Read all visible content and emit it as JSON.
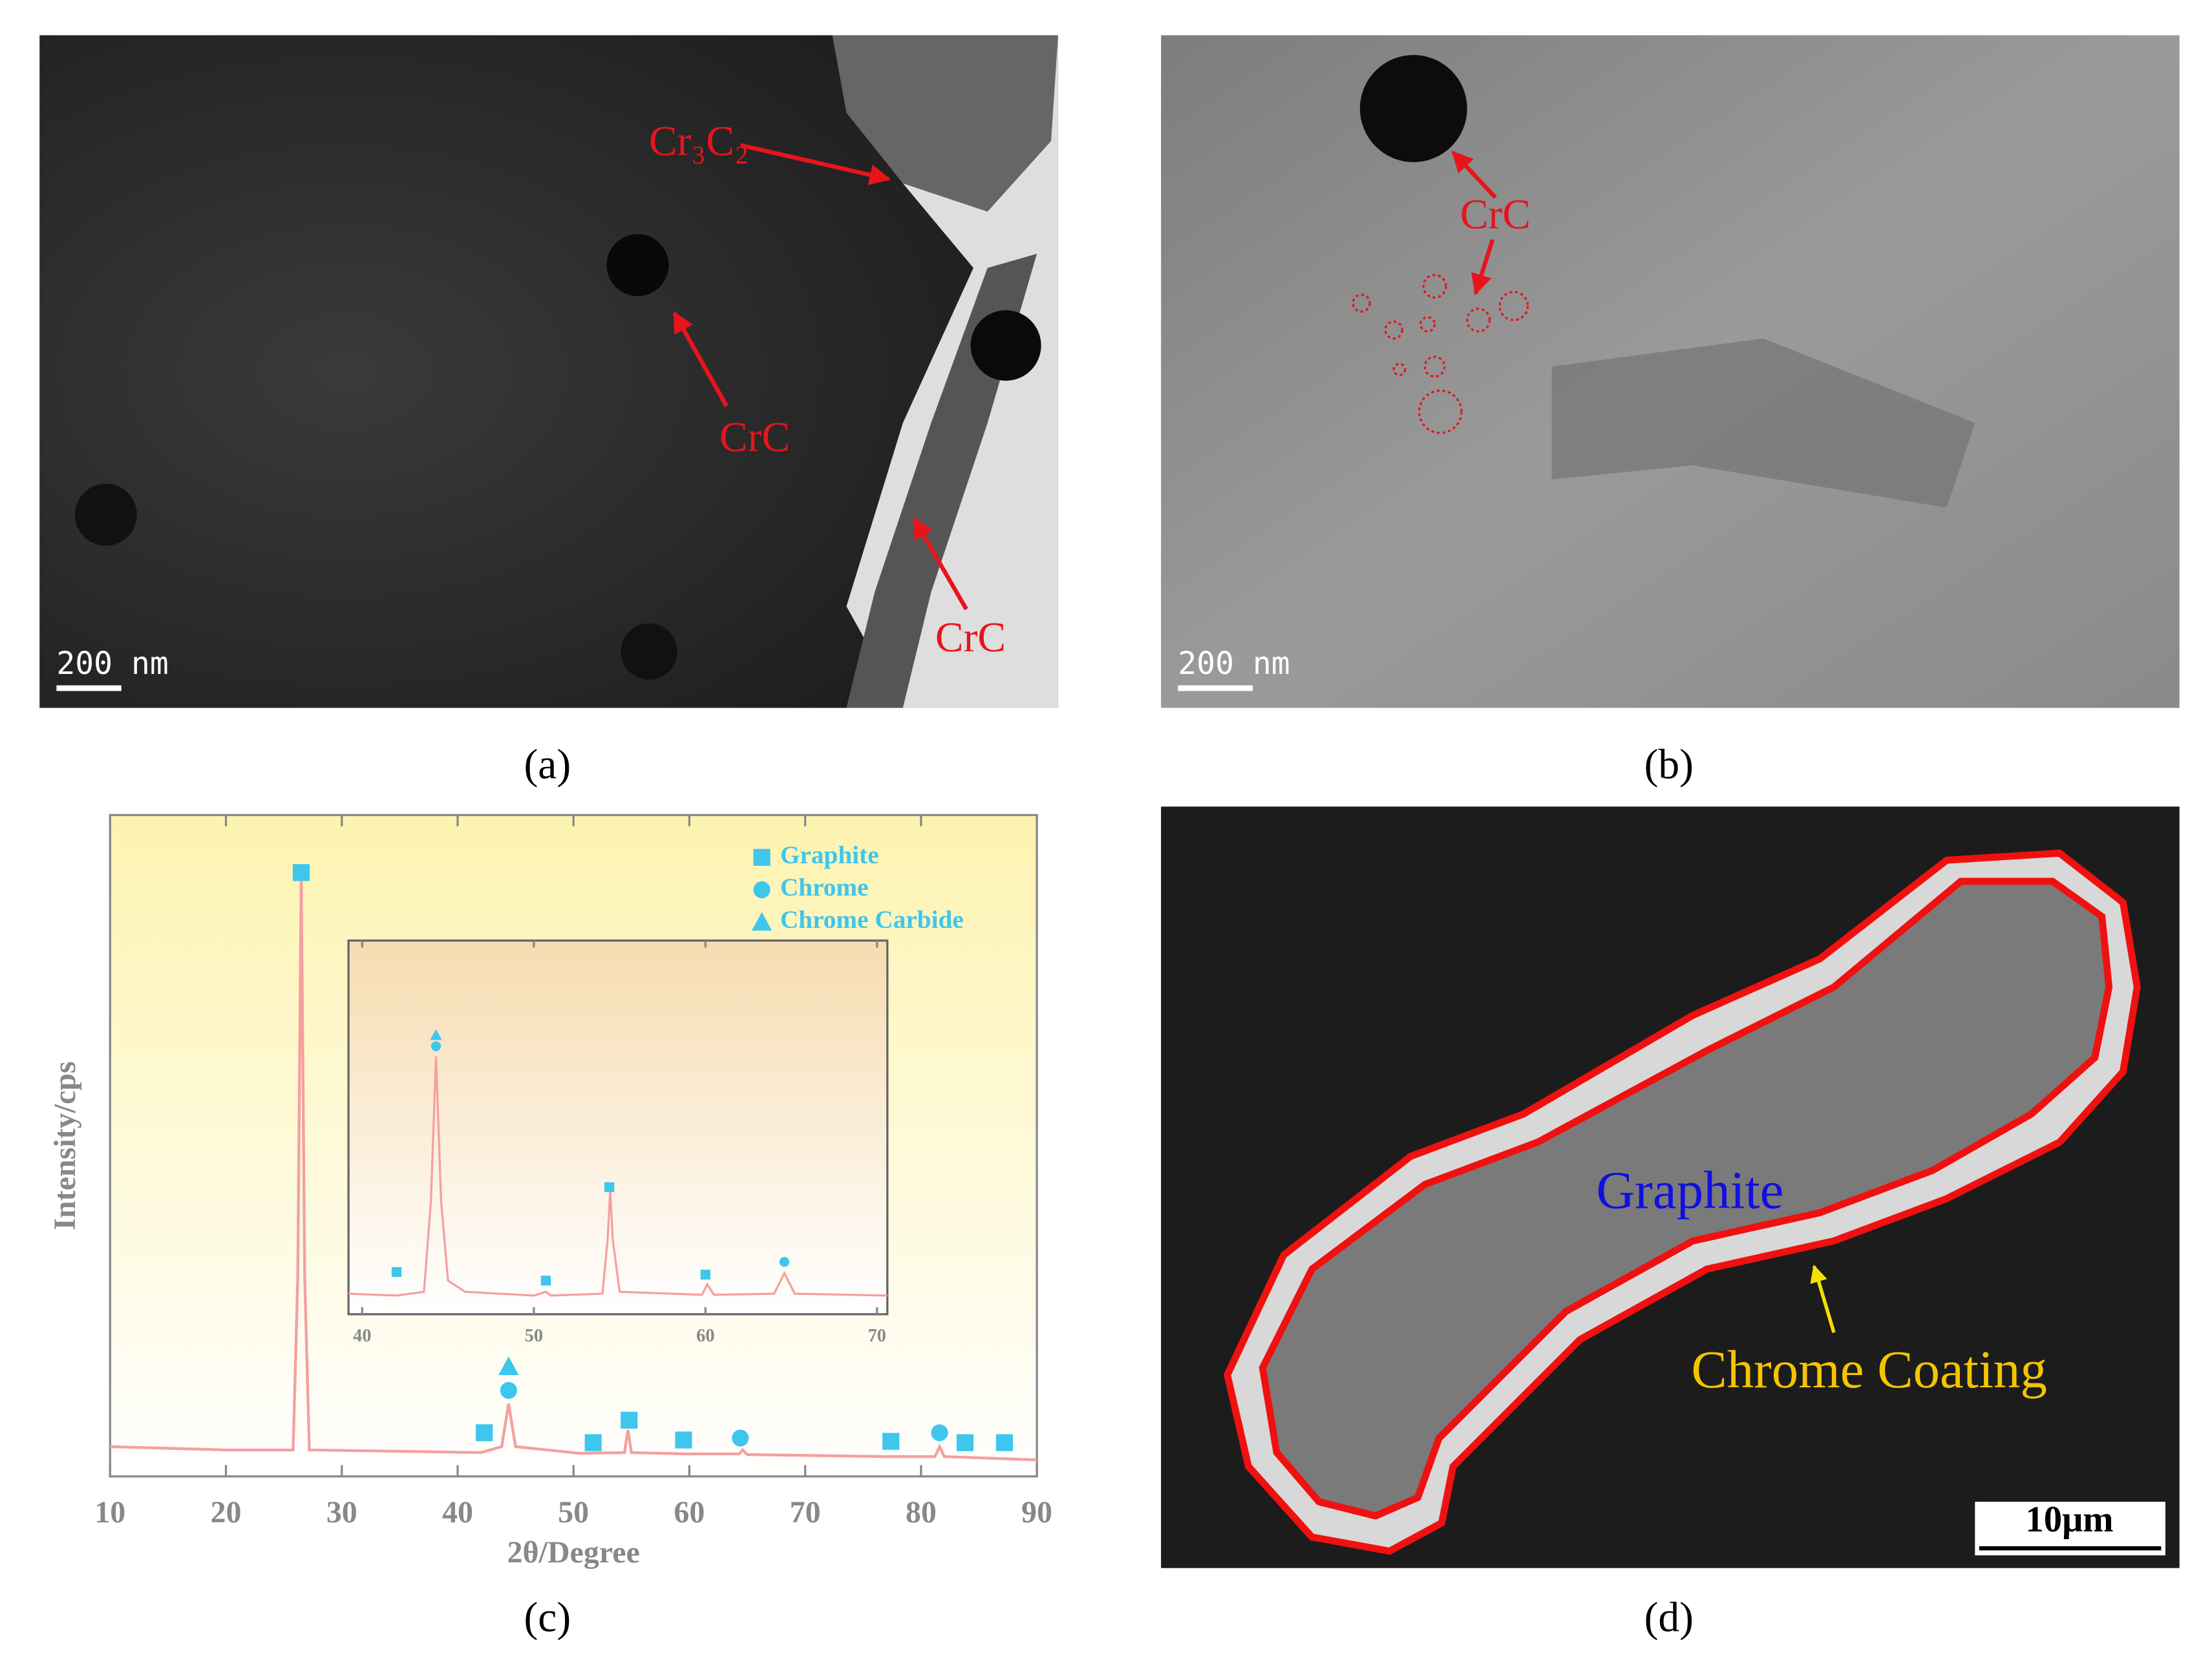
{
  "panels": {
    "a": {
      "label": "(a)",
      "annotations": [
        "Cr₃C₂",
        "CrC",
        "CrC"
      ],
      "scale_bar": "200 nm"
    },
    "b": {
      "label": "(b)",
      "annotations": [
        "CrC"
      ],
      "scale_bar": "200 nm"
    },
    "c": {
      "label": "(c)"
    },
    "d": {
      "label": "(d)",
      "annotations": [
        "Graphite",
        "Chrome Coating"
      ],
      "scale_bar": "10μm"
    }
  },
  "chart_data": [
    {
      "type": "line",
      "xlabel": "2θ/Degree",
      "ylabel": "Intensity/cps",
      "xlim": [
        10,
        90
      ],
      "xticks": [
        10,
        20,
        30,
        40,
        50,
        60,
        70,
        80,
        90
      ],
      "ylim": [
        0,
        100
      ],
      "color": "#f4a0a0",
      "x": [
        10,
        20,
        25.8,
        26.2,
        26.5,
        26.8,
        27.2,
        35,
        42,
        43.8,
        44.4,
        45,
        50.5,
        54.4,
        54.7,
        55,
        60,
        64.3,
        64.6,
        65,
        77,
        81.2,
        81.6,
        82,
        90
      ],
      "values": [
        4.5,
        4,
        4,
        30,
        91,
        30,
        4,
        3.8,
        3.6,
        4.5,
        11,
        4.5,
        3.5,
        3.6,
        7,
        3.6,
        3.4,
        3.4,
        4,
        3.3,
        3,
        3,
        4.5,
        3,
        2.5
      ],
      "markers": [
        {
          "name": "Graphite",
          "shape": "square",
          "color": "#3ec6ec",
          "x": [
            26.5,
            42.3,
            51.7,
            54.8,
            59.5,
            77.4,
            83.8,
            87.2
          ],
          "y": [
            91.3,
            6.6,
            5.1,
            8.5,
            5.5,
            5.3,
            5.1,
            5.1
          ]
        },
        {
          "name": "Chrome",
          "shape": "circle",
          "color": "#3ec6ec",
          "x": [
            44.4,
            64.4,
            81.6
          ],
          "y": [
            13,
            5.8,
            6.6
          ]
        },
        {
          "name": "Chrome Carbide",
          "shape": "triangle",
          "color": "#3ec6ec",
          "x": [
            44.4
          ],
          "y": [
            16.6
          ]
        }
      ]
    },
    {
      "type": "line",
      "xlim": [
        39.2,
        70.6
      ],
      "xticks": [
        40,
        50,
        60,
        70
      ],
      "ylim": [
        0,
        100
      ],
      "color": "#f4a0a0",
      "x": [
        39.2,
        42,
        43.6,
        44.0,
        44.3,
        44.6,
        45,
        46,
        50,
        50.7,
        51,
        54,
        54.3,
        54.45,
        54.6,
        55,
        59.8,
        60.1,
        60.5,
        64,
        64.6,
        65.2,
        70.6
      ],
      "values": [
        5.5,
        5,
        6,
        30,
        69,
        30,
        9,
        6,
        5,
        6,
        5,
        5.5,
        20,
        33,
        20,
        6,
        5.2,
        8,
        5.2,
        5.5,
        11,
        5.5,
        5
      ],
      "markers": [
        {
          "shape": "square",
          "color": "#3ec6ec",
          "x": [
            42,
            50.7,
            54.4,
            60
          ],
          "y": [
            11.3,
            9,
            34,
            10.6
          ]
        },
        {
          "shape": "circle",
          "color": "#3ec6ec",
          "x": [
            44.3,
            64.6
          ],
          "y": [
            71.7,
            14
          ]
        },
        {
          "shape": "triangle",
          "color": "#3ec6ec",
          "x": [
            44.3
          ],
          "y": [
            74.7
          ]
        }
      ]
    }
  ]
}
